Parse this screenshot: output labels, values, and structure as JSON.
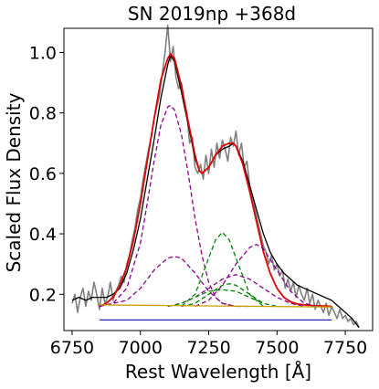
{
  "chart_data": {
    "type": "line",
    "title": "SN 2019np  +368d",
    "xlabel": "Rest Wavelength [Å]",
    "ylabel": "Scaled Flux Density",
    "xlim": [
      6720,
      7850
    ],
    "ylim": [
      0.08,
      1.08
    ],
    "xticks": [
      6750,
      7000,
      7250,
      7500,
      7750
    ],
    "xtick_labels": [
      "6750",
      "7000",
      "7250",
      "7500",
      "7750"
    ],
    "yticks": [
      0.2,
      0.4,
      0.6,
      0.8,
      1.0
    ],
    "ytick_labels": [
      "0.2",
      "0.4",
      "0.6",
      "0.8",
      "1.0"
    ],
    "grid": false,
    "series": [
      {
        "role": "observed",
        "color": "#808080",
        "x": [
          6750,
          6760,
          6770,
          6780,
          6790,
          6800,
          6810,
          6820,
          6830,
          6840,
          6850,
          6860,
          6870,
          6880,
          6890,
          6900,
          6910,
          6920,
          6930,
          6940,
          6950,
          6960,
          6970,
          6980,
          6990,
          7000,
          7010,
          7020,
          7030,
          7040,
          7050,
          7060,
          7070,
          7080,
          7090,
          7100,
          7110,
          7120,
          7130,
          7140,
          7150,
          7160,
          7170,
          7180,
          7190,
          7200,
          7210,
          7220,
          7230,
          7240,
          7250,
          7260,
          7270,
          7280,
          7290,
          7300,
          7310,
          7320,
          7330,
          7340,
          7350,
          7360,
          7370,
          7380,
          7390,
          7400,
          7410,
          7420,
          7430,
          7440,
          7450,
          7460,
          7470,
          7480,
          7490,
          7500,
          7510,
          7520,
          7530,
          7540,
          7550,
          7560,
          7570,
          7580,
          7590,
          7600,
          7610,
          7620,
          7630,
          7640,
          7650,
          7660,
          7670,
          7680,
          7690,
          7700,
          7710,
          7720,
          7730,
          7740,
          7750,
          7760,
          7770,
          7780,
          7790,
          7800
        ],
        "y": [
          0.17,
          0.2,
          0.14,
          0.19,
          0.22,
          0.16,
          0.21,
          0.18,
          0.24,
          0.2,
          0.15,
          0.22,
          0.17,
          0.19,
          0.24,
          0.18,
          0.21,
          0.23,
          0.26,
          0.24,
          0.3,
          0.33,
          0.38,
          0.42,
          0.48,
          0.52,
          0.58,
          0.63,
          0.68,
          0.72,
          0.78,
          0.82,
          0.86,
          0.93,
          1.0,
          1.09,
          0.97,
          1.02,
          0.92,
          0.88,
          0.9,
          0.84,
          0.8,
          0.7,
          0.72,
          0.62,
          0.6,
          0.63,
          0.58,
          0.66,
          0.6,
          0.68,
          0.62,
          0.7,
          0.65,
          0.71,
          0.68,
          0.64,
          0.72,
          0.69,
          0.74,
          0.66,
          0.7,
          0.62,
          0.64,
          0.56,
          0.52,
          0.48,
          0.44,
          0.4,
          0.36,
          0.34,
          0.3,
          0.33,
          0.28,
          0.3,
          0.26,
          0.28,
          0.22,
          0.25,
          0.21,
          0.24,
          0.19,
          0.23,
          0.2,
          0.18,
          0.22,
          0.17,
          0.2,
          0.15,
          0.18,
          0.16,
          0.14,
          0.17,
          0.13,
          0.16,
          0.14,
          0.12,
          0.15,
          0.12,
          0.13,
          0.11,
          0.12,
          0.1,
          0.11,
          0.09
        ]
      },
      {
        "role": "smoothed",
        "color": "#000000",
        "x": [
          6750,
          6775,
          6800,
          6825,
          6850,
          6875,
          6900,
          6925,
          6950,
          6975,
          7000,
          7025,
          7050,
          7075,
          7100,
          7110,
          7125,
          7150,
          7175,
          7200,
          7215,
          7225,
          7250,
          7275,
          7300,
          7325,
          7340,
          7350,
          7375,
          7400,
          7425,
          7450,
          7475,
          7500,
          7525,
          7550,
          7575,
          7600,
          7625,
          7650,
          7675,
          7700,
          7725,
          7750,
          7775,
          7800
        ],
        "y": [
          0.18,
          0.19,
          0.18,
          0.19,
          0.19,
          0.19,
          0.2,
          0.22,
          0.27,
          0.35,
          0.45,
          0.58,
          0.71,
          0.85,
          0.96,
          0.99,
          0.97,
          0.87,
          0.76,
          0.65,
          0.61,
          0.6,
          0.62,
          0.66,
          0.68,
          0.69,
          0.7,
          0.69,
          0.64,
          0.56,
          0.48,
          0.4,
          0.34,
          0.3,
          0.27,
          0.25,
          0.23,
          0.22,
          0.21,
          0.2,
          0.19,
          0.18,
          0.16,
          0.14,
          0.12,
          0.09
        ]
      },
      {
        "role": "total-fit",
        "color": "#e00000",
        "x": [
          6850,
          6875,
          6900,
          6925,
          6950,
          6975,
          7000,
          7025,
          7050,
          7075,
          7100,
          7110,
          7125,
          7150,
          7175,
          7200,
          7215,
          7225,
          7250,
          7275,
          7300,
          7325,
          7340,
          7350,
          7375,
          7400,
          7425,
          7450,
          7475,
          7500,
          7525,
          7550,
          7575,
          7600,
          7625,
          7650,
          7675,
          7700
        ],
        "y": [
          0.16,
          0.17,
          0.19,
          0.23,
          0.29,
          0.38,
          0.5,
          0.64,
          0.78,
          0.91,
          0.98,
          0.995,
          0.98,
          0.89,
          0.77,
          0.66,
          0.61,
          0.6,
          0.62,
          0.66,
          0.69,
          0.7,
          0.7,
          0.69,
          0.63,
          0.54,
          0.44,
          0.34,
          0.27,
          0.22,
          0.19,
          0.175,
          0.168,
          0.165,
          0.163,
          0.162,
          0.161,
          0.16
        ]
      },
      {
        "role": "component",
        "color": "#8b008b",
        "dash": true,
        "x": [
          6850,
          6900,
          6950,
          7000,
          7025,
          7050,
          7075,
          7100,
          7110,
          7125,
          7150,
          7175,
          7200,
          7225,
          7250,
          7275,
          7300,
          7350,
          7400
        ],
        "y": [
          0.16,
          0.17,
          0.22,
          0.37,
          0.5,
          0.64,
          0.76,
          0.82,
          0.825,
          0.81,
          0.73,
          0.6,
          0.45,
          0.33,
          0.24,
          0.19,
          0.17,
          0.16,
          0.16
        ]
      },
      {
        "role": "component",
        "color": "#8b008b",
        "dash": true,
        "x": [
          6850,
          6950,
          7000,
          7050,
          7100,
          7125,
          7150,
          7200,
          7250,
          7300,
          7350
        ],
        "y": [
          0.16,
          0.18,
          0.22,
          0.28,
          0.32,
          0.325,
          0.32,
          0.27,
          0.21,
          0.17,
          0.16
        ]
      },
      {
        "role": "component",
        "color": "#8b008b",
        "dash": true,
        "x": [
          7200,
          7250,
          7300,
          7350,
          7400,
          7425,
          7450,
          7500,
          7550,
          7600,
          7650
        ],
        "y": [
          0.16,
          0.18,
          0.23,
          0.3,
          0.355,
          0.365,
          0.35,
          0.28,
          0.21,
          0.17,
          0.16
        ]
      },
      {
        "role": "component",
        "color": "#8b008b",
        "dash": true,
        "x": [
          7100,
          7150,
          7200,
          7250,
          7300,
          7350,
          7400,
          7450,
          7500,
          7550,
          7600
        ],
        "y": [
          0.16,
          0.17,
          0.19,
          0.22,
          0.25,
          0.265,
          0.25,
          0.22,
          0.19,
          0.17,
          0.16
        ]
      },
      {
        "role": "component",
        "color": "#008000",
        "dash": true,
        "x": [
          7150,
          7200,
          7250,
          7275,
          7300,
          7325,
          7350,
          7400,
          7450
        ],
        "y": [
          0.16,
          0.2,
          0.32,
          0.38,
          0.405,
          0.38,
          0.32,
          0.2,
          0.16
        ]
      },
      {
        "role": "component",
        "color": "#008000",
        "dash": true,
        "x": [
          7150,
          7200,
          7250,
          7300,
          7325,
          7350,
          7400,
          7450,
          7500
        ],
        "y": [
          0.16,
          0.17,
          0.2,
          0.23,
          0.235,
          0.23,
          0.2,
          0.17,
          0.16
        ]
      },
      {
        "role": "component",
        "color": "#008000",
        "dash": true,
        "x": [
          7100,
          7150,
          7200,
          7250,
          7300,
          7350,
          7400,
          7450
        ],
        "y": [
          0.16,
          0.17,
          0.19,
          0.21,
          0.215,
          0.21,
          0.19,
          0.17
        ]
      },
      {
        "role": "continuum",
        "color": "#c8a000",
        "x": [
          6850,
          7700
        ],
        "y": [
          0.165,
          0.158
        ]
      },
      {
        "role": "baseline",
        "color": "#2222cc",
        "x": [
          6850,
          7700
        ],
        "y": [
          0.115,
          0.115
        ]
      }
    ]
  }
}
